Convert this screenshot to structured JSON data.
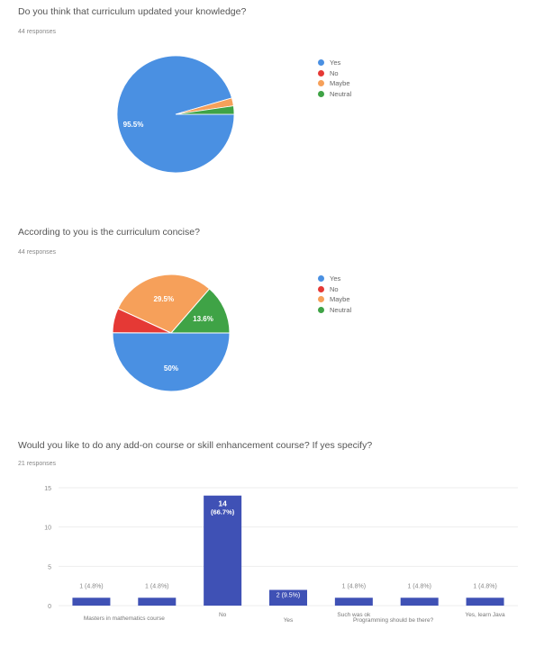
{
  "chart_data": [
    {
      "type": "pie",
      "title": "Do you think that curriculum updated your knowledge?",
      "subtitle": "44 responses",
      "categories": [
        "Yes",
        "No",
        "Maybe",
        "Neutral"
      ],
      "values": [
        95.5,
        0,
        2.2,
        2.3
      ],
      "slice_labels": [
        "95.5%",
        "",
        "",
        ""
      ],
      "colors": [
        "#4a90e2",
        "#e53935",
        "#f6a05a",
        "#3fa346"
      ],
      "legend_position": "right"
    },
    {
      "type": "pie",
      "title": "According to you is the curriculum concise?",
      "subtitle": "44 responses",
      "categories": [
        "Yes",
        "No",
        "Maybe",
        "Neutral"
      ],
      "values": [
        50,
        6.8,
        29.5,
        13.6
      ],
      "slice_labels": [
        "50%",
        "",
        "29.5%",
        "13.6%"
      ],
      "colors": [
        "#4a90e2",
        "#e53935",
        "#f6a05a",
        "#3fa346"
      ],
      "legend_position": "right"
    },
    {
      "type": "bar",
      "title": "Would you like to do any add-on course or skill enhancement course? If yes specify?",
      "subtitle": "21 responses",
      "categories": [
        "",
        "Masters in mathematics course",
        "No",
        "Yes",
        "Such was ok",
        "Programming should be there?",
        "Yes, learn Java"
      ],
      "tick_labels": [
        "Masters in mathematics course",
        "No",
        "Yes",
        "Such was ok",
        "Programming should be there?",
        "Yes, learn Java"
      ],
      "values": [
        1,
        1,
        14,
        2,
        1,
        1,
        1
      ],
      "data_labels": [
        "1 (4.8%)",
        "1 (4.8%)",
        "14\n(66.7%)",
        "2 (9.5%)",
        "1 (4.8%)",
        "1 (4.8%)",
        "1 (4.8%)"
      ],
      "y_ticks": [
        0,
        5,
        10,
        15
      ],
      "ylim": [
        0,
        15
      ],
      "color": "#3f51b5"
    }
  ]
}
